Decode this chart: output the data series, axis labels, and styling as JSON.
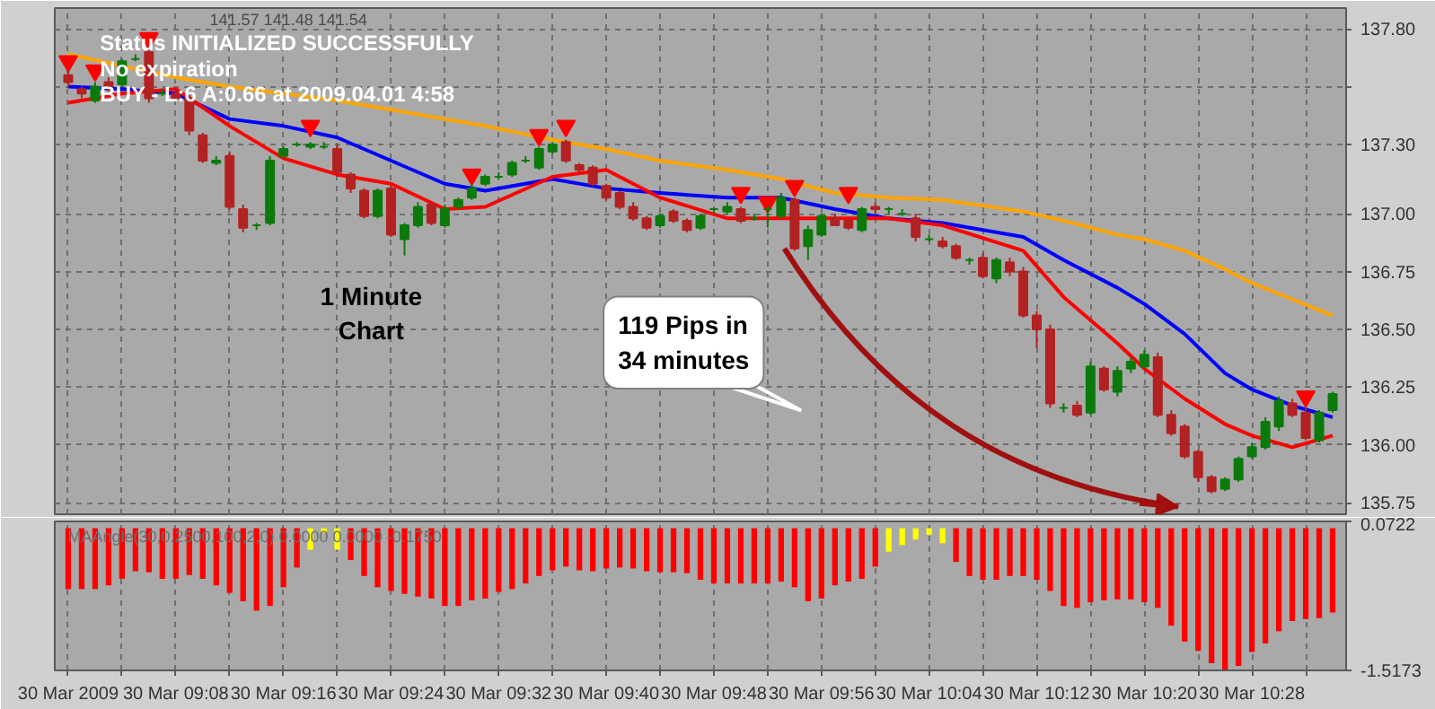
{
  "chart_data": [
    {
      "type": "candlestick",
      "annotations": [
        "141.57 141.48 141.54",
        "Status INITIALIZED SUCCESSFULLY",
        "No expiration",
        "BUY - L:6 A:0.66 at 2009.04.01 4:58",
        "1 Minute\nChart",
        "119 Pips in\n34 minutes"
      ],
      "x": [
        "2009-03-30T09:00",
        "2009-03-30T09:01",
        "2009-03-30T09:02",
        "2009-03-30T09:03",
        "2009-03-30T09:04",
        "2009-03-30T09:05",
        "2009-03-30T09:06",
        "2009-03-30T09:07",
        "2009-03-30T09:08",
        "2009-03-30T09:09",
        "2009-03-30T09:10",
        "2009-03-30T09:11",
        "2009-03-30T09:12",
        "2009-03-30T09:13",
        "2009-03-30T09:14",
        "2009-03-30T09:15",
        "2009-03-30T09:16",
        "2009-03-30T09:17",
        "2009-03-30T09:18",
        "2009-03-30T09:19",
        "2009-03-30T09:20",
        "2009-03-30T09:21",
        "2009-03-30T09:22",
        "2009-03-30T09:23",
        "2009-03-30T09:24",
        "2009-03-30T09:25",
        "2009-03-30T09:26",
        "2009-03-30T09:27",
        "2009-03-30T09:28",
        "2009-03-30T09:29",
        "2009-03-30T09:30",
        "2009-03-30T09:31",
        "2009-03-30T09:32",
        "2009-03-30T09:33",
        "2009-03-30T09:34",
        "2009-03-30T09:35",
        "2009-03-30T09:36",
        "2009-03-30T09:37",
        "2009-03-30T09:38",
        "2009-03-30T09:39",
        "2009-03-30T09:40",
        "2009-03-30T09:41",
        "2009-03-30T09:42",
        "2009-03-30T09:43",
        "2009-03-30T09:44",
        "2009-03-30T09:45",
        "2009-03-30T09:46",
        "2009-03-30T09:47",
        "2009-03-30T09:48",
        "2009-03-30T09:49",
        "2009-03-30T09:50",
        "2009-03-30T09:51",
        "2009-03-30T09:52",
        "2009-03-30T09:53",
        "2009-03-30T09:54",
        "2009-03-30T09:55",
        "2009-03-30T09:56",
        "2009-03-30T09:57",
        "2009-03-30T09:58",
        "2009-03-30T09:59",
        "2009-03-30T10:00",
        "2009-03-30T10:01",
        "2009-03-30T10:02",
        "2009-03-30T10:03",
        "2009-03-30T10:04",
        "2009-03-30T10:05",
        "2009-03-30T10:06",
        "2009-03-30T10:07",
        "2009-03-30T10:08",
        "2009-03-30T10:09",
        "2009-03-30T10:10",
        "2009-03-30T10:11",
        "2009-03-30T10:12",
        "2009-03-30T10:13",
        "2009-03-30T10:14",
        "2009-03-30T10:15",
        "2009-03-30T10:16",
        "2009-03-30T10:17",
        "2009-03-30T10:18",
        "2009-03-30T10:19",
        "2009-03-30T10:20",
        "2009-03-30T10:21",
        "2009-03-30T10:22",
        "2009-03-30T10:23",
        "2009-03-30T10:24",
        "2009-03-30T10:25",
        "2009-03-30T10:26",
        "2009-03-30T10:27",
        "2009-03-30T10:28",
        "2009-03-30T10:29",
        "2009-03-30T10:30",
        "2009-03-30T10:31",
        "2009-03-30T10:32",
        "2009-03-30T10:33",
        "2009-03-30T10:34"
      ],
      "ohlc": [
        [
          137.6,
          137.62,
          137.55,
          137.57
        ],
        [
          137.54,
          137.55,
          137.5,
          137.52
        ],
        [
          137.49,
          137.57,
          137.48,
          137.55
        ],
        [
          137.57,
          137.59,
          137.53,
          137.55
        ],
        [
          137.56,
          137.67,
          137.55,
          137.66
        ],
        [
          137.67,
          137.69,
          137.66,
          137.67
        ],
        [
          137.7,
          137.71,
          137.48,
          137.5
        ],
        [
          137.52,
          137.54,
          137.51,
          137.52
        ],
        [
          137.52,
          137.54,
          137.49,
          137.5
        ],
        [
          137.5,
          137.52,
          137.34,
          137.36
        ],
        [
          137.34,
          137.35,
          137.22,
          137.23
        ],
        [
          137.22,
          137.25,
          137.21,
          137.23
        ],
        [
          137.25,
          137.27,
          137.02,
          137.03
        ],
        [
          137.02,
          137.04,
          136.92,
          136.94
        ],
        [
          136.95,
          136.96,
          136.93,
          136.95
        ],
        [
          136.96,
          137.25,
          136.95,
          137.23
        ],
        [
          137.25,
          137.29,
          137.24,
          137.28
        ],
        [
          137.3,
          137.31,
          137.29,
          137.3
        ],
        [
          137.29,
          137.31,
          137.28,
          137.3
        ],
        [
          137.29,
          137.31,
          137.28,
          137.29
        ],
        [
          137.28,
          137.3,
          137.16,
          137.18
        ],
        [
          137.17,
          137.18,
          137.09,
          137.11
        ],
        [
          137.1,
          137.11,
          136.98,
          136.99
        ],
        [
          136.99,
          137.11,
          136.98,
          137.1
        ],
        [
          137.11,
          137.12,
          136.9,
          136.91
        ],
        [
          136.89,
          136.96,
          136.82,
          136.95
        ],
        [
          136.95,
          137.05,
          136.94,
          137.03
        ],
        [
          137.04,
          137.05,
          136.95,
          136.96
        ],
        [
          136.95,
          137.04,
          136.94,
          137.02
        ],
        [
          137.03,
          137.07,
          137.02,
          137.06
        ],
        [
          137.07,
          137.13,
          137.06,
          137.11
        ],
        [
          137.13,
          137.17,
          137.12,
          137.16
        ],
        [
          137.16,
          137.18,
          137.15,
          137.16
        ],
        [
          137.17,
          137.23,
          137.16,
          137.22
        ],
        [
          137.23,
          137.25,
          137.22,
          137.23
        ],
        [
          137.2,
          137.29,
          137.19,
          137.28
        ],
        [
          137.27,
          137.31,
          137.26,
          137.3
        ],
        [
          137.31,
          137.32,
          137.22,
          137.23
        ],
        [
          137.21,
          137.22,
          137.18,
          137.19
        ],
        [
          137.2,
          137.21,
          137.12,
          137.13
        ],
        [
          137.12,
          137.13,
          137.06,
          137.07
        ],
        [
          137.09,
          137.1,
          137.02,
          137.03
        ],
        [
          137.03,
          137.05,
          136.97,
          136.98
        ],
        [
          136.98,
          136.99,
          136.93,
          136.94
        ],
        [
          136.95,
          137.0,
          136.94,
          136.99
        ],
        [
          137.01,
          137.02,
          136.96,
          136.97
        ],
        [
          136.97,
          136.98,
          136.92,
          136.93
        ],
        [
          136.94,
          137.0,
          136.93,
          136.99
        ],
        [
          137.02,
          137.03,
          137.0,
          137.02
        ],
        [
          137.01,
          137.05,
          137.0,
          137.03
        ],
        [
          137.02,
          137.03,
          136.96,
          136.97
        ],
        [
          136.98,
          137.0,
          136.97,
          136.98
        ],
        [
          137.02,
          137.04,
          136.94,
          137.02
        ],
        [
          136.99,
          137.09,
          136.98,
          137.07
        ],
        [
          137.06,
          137.07,
          136.84,
          136.85
        ],
        [
          136.86,
          136.95,
          136.8,
          136.93
        ],
        [
          136.91,
          137.0,
          136.9,
          136.99
        ],
        [
          136.98,
          137.0,
          136.95,
          136.95
        ],
        [
          136.97,
          136.98,
          136.93,
          136.94
        ],
        [
          136.93,
          137.03,
          136.92,
          137.02
        ],
        [
          137.03,
          137.05,
          137.0,
          137.02
        ],
        [
          137.02,
          137.03,
          137.0,
          137.02
        ],
        [
          137.0,
          137.02,
          136.99,
          137.0
        ],
        [
          136.98,
          137.0,
          136.88,
          136.9
        ],
        [
          136.89,
          136.91,
          136.88,
          136.89
        ],
        [
          136.88,
          136.9,
          136.85,
          136.86
        ],
        [
          136.86,
          136.87,
          136.8,
          136.81
        ],
        [
          136.8,
          136.81,
          136.78,
          136.8
        ],
        [
          136.81,
          136.83,
          136.72,
          136.73
        ],
        [
          136.72,
          136.81,
          136.7,
          136.8
        ],
        [
          136.79,
          136.81,
          136.73,
          136.75
        ],
        [
          136.75,
          136.77,
          136.55,
          136.56
        ],
        [
          136.56,
          136.58,
          136.42,
          136.5
        ],
        [
          136.5,
          136.52,
          136.16,
          136.18
        ],
        [
          136.16,
          136.18,
          136.14,
          136.16
        ],
        [
          136.17,
          136.19,
          136.12,
          136.13
        ],
        [
          136.14,
          136.36,
          136.13,
          136.34
        ],
        [
          136.33,
          136.34,
          136.23,
          136.24
        ],
        [
          136.23,
          136.34,
          136.21,
          136.32
        ],
        [
          136.33,
          136.38,
          136.31,
          136.36
        ],
        [
          136.34,
          136.41,
          136.33,
          136.39
        ],
        [
          136.38,
          136.4,
          136.12,
          136.13
        ],
        [
          136.13,
          136.15,
          136.04,
          136.05
        ],
        [
          136.08,
          136.09,
          135.94,
          135.95
        ],
        [
          135.97,
          135.98,
          135.84,
          135.86
        ],
        [
          135.86,
          135.87,
          135.79,
          135.8
        ],
        [
          135.81,
          135.86,
          135.8,
          135.85
        ],
        [
          135.85,
          135.95,
          135.84,
          135.94
        ],
        [
          135.95,
          136.01,
          135.94,
          135.99
        ],
        [
          135.99,
          136.12,
          135.98,
          136.1
        ],
        [
          136.08,
          136.21,
          136.06,
          136.19
        ],
        [
          136.18,
          136.2,
          136.12,
          136.13
        ],
        [
          136.14,
          136.16,
          136.02,
          136.03
        ],
        [
          136.02,
          136.15,
          136.01,
          136.14
        ],
        [
          136.15,
          136.23,
          136.14,
          136.22
        ]
      ],
      "colors": [
        "#b22222",
        "#b22222",
        "#0b7a0b",
        "#b22222",
        "#0b7a0b",
        "#0b7a0b",
        "#b22222",
        "#0b7a0b",
        "#b22222",
        "#b22222",
        "#b22222",
        "#0b7a0b",
        "#b22222",
        "#b22222",
        "#0b7a0b",
        "#0b7a0b",
        "#0b7a0b",
        "#0b7a0b",
        "#0b7a0b",
        "#0b7a0b",
        "#b22222",
        "#b22222",
        "#b22222",
        "#0b7a0b",
        "#b22222",
        "#0b7a0b",
        "#0b7a0b",
        "#b22222",
        "#0b7a0b",
        "#0b7a0b",
        "#0b7a0b",
        "#0b7a0b",
        "#0b7a0b",
        "#0b7a0b",
        "#0b7a0b",
        "#0b7a0b",
        "#0b7a0b",
        "#b22222",
        "#b22222",
        "#b22222",
        "#b22222",
        "#b22222",
        "#b22222",
        "#b22222",
        "#0b7a0b",
        "#b22222",
        "#b22222",
        "#0b7a0b",
        "#0b7a0b",
        "#0b7a0b",
        "#b22222",
        "#0b7a0b",
        "#0b7a0b",
        "#0b7a0b",
        "#b22222",
        "#0b7a0b",
        "#0b7a0b",
        "#b22222",
        "#b22222",
        "#0b7a0b",
        "#b22222",
        "#0b7a0b",
        "#0b7a0b",
        "#b22222",
        "#0b7a0b",
        "#b22222",
        "#b22222",
        "#0b7a0b",
        "#b22222",
        "#0b7a0b",
        "#b22222",
        "#b22222",
        "#b22222",
        "#b22222",
        "#0b7a0b",
        "#b22222",
        "#0b7a0b",
        "#b22222",
        "#0b7a0b",
        "#0b7a0b",
        "#0b7a0b",
        "#b22222",
        "#b22222",
        "#b22222",
        "#b22222",
        "#b22222",
        "#0b7a0b",
        "#0b7a0b",
        "#0b7a0b",
        "#0b7a0b",
        "#0b7a0b",
        "#b22222",
        "#b22222",
        "#0b7a0b",
        "#0b7a0b"
      ],
      "series": [
        {
          "type": "line",
          "color": "#ffa500",
          "x": [
            "2009-03-30T09:00",
            "2009-03-30T09:04",
            "2009-03-30T09:08",
            "2009-03-30T09:12",
            "2009-03-30T09:16",
            "2009-03-30T09:20",
            "2009-03-30T09:24",
            "2009-03-30T09:28",
            "2009-03-30T09:31",
            "2009-03-30T09:36",
            "2009-03-30T09:40",
            "2009-03-30T09:44",
            "2009-03-30T09:49",
            "2009-03-30T09:53",
            "2009-03-30T09:57",
            "2009-03-30T10:01",
            "2009-03-30T10:05",
            "2009-03-30T10:11",
            "2009-03-30T10:14",
            "2009-03-30T10:18",
            "2009-03-30T10:20",
            "2009-03-30T10:23",
            "2009-03-30T10:26",
            "2009-03-30T10:28",
            "2009-03-30T10:31",
            "2009-03-30T10:34"
          ],
          "values": [
            137.69,
            137.64,
            137.59,
            137.55,
            137.52,
            137.49,
            137.45,
            137.41,
            137.38,
            137.32,
            137.28,
            137.23,
            137.19,
            137.15,
            137.09,
            137.07,
            137.06,
            137.01,
            136.97,
            136.91,
            136.89,
            136.84,
            136.76,
            136.7,
            136.63,
            136.56
          ]
        },
        {
          "type": "line",
          "color": "#0000ff",
          "x": [
            "2009-03-30T09:00",
            "2009-03-30T09:04",
            "2009-03-30T09:08",
            "2009-03-30T09:12",
            "2009-03-30T09:16",
            "2009-03-30T09:20",
            "2009-03-30T09:24",
            "2009-03-30T09:28",
            "2009-03-30T09:31",
            "2009-03-30T09:36",
            "2009-03-30T09:40",
            "2009-03-30T09:44",
            "2009-03-30T09:49",
            "2009-03-30T09:53",
            "2009-03-30T09:57",
            "2009-03-30T10:01",
            "2009-03-30T10:05",
            "2009-03-30T10:11",
            "2009-03-30T10:14",
            "2009-03-30T10:18",
            "2009-03-30T10:20",
            "2009-03-30T10:23",
            "2009-03-30T10:26",
            "2009-03-30T10:28",
            "2009-03-30T10:31",
            "2009-03-30T10:34"
          ],
          "values": [
            137.55,
            137.54,
            137.52,
            137.41,
            137.38,
            137.33,
            137.23,
            137.13,
            137.1,
            137.15,
            137.11,
            137.09,
            137.07,
            137.07,
            137.02,
            136.98,
            136.96,
            136.9,
            136.8,
            136.68,
            136.61,
            136.48,
            136.31,
            136.24,
            136.17,
            136.12
          ]
        },
        {
          "type": "line",
          "color": "#ff0000",
          "x": [
            "2009-03-30T09:00",
            "2009-03-30T09:04",
            "2009-03-30T09:08",
            "2009-03-30T09:12",
            "2009-03-30T09:16",
            "2009-03-30T09:20",
            "2009-03-30T09:24",
            "2009-03-30T09:28",
            "2009-03-30T09:31",
            "2009-03-30T09:36",
            "2009-03-30T09:40",
            "2009-03-30T09:44",
            "2009-03-30T09:49",
            "2009-03-30T09:53",
            "2009-03-30T09:57",
            "2009-03-30T10:01",
            "2009-03-30T10:05",
            "2009-03-30T10:11",
            "2009-03-30T10:14",
            "2009-03-30T10:18",
            "2009-03-30T10:20",
            "2009-03-30T10:23",
            "2009-03-30T10:26",
            "2009-03-30T10:28",
            "2009-03-30T10:31",
            "2009-03-30T10:34"
          ],
          "values": [
            137.48,
            137.52,
            137.54,
            137.38,
            137.24,
            137.17,
            137.13,
            137.02,
            137.03,
            137.16,
            137.19,
            137.07,
            136.98,
            136.98,
            136.98,
            136.98,
            136.95,
            136.84,
            136.64,
            136.44,
            136.33,
            136.2,
            136.09,
            136.04,
            135.99,
            136.04
          ]
        },
        {
          "type": "scatter",
          "marker": "triangle",
          "color": "#ff0000",
          "x": [
            "2009-03-30T09:00",
            "2009-03-30T09:02",
            "2009-03-30T09:06",
            "2009-03-30T09:18",
            "2009-03-30T09:30",
            "2009-03-30T09:35",
            "2009-03-30T09:37",
            "2009-03-30T09:50",
            "2009-03-30T09:52",
            "2009-03-30T09:54",
            "2009-03-30T09:58",
            "2009-03-30T10:32"
          ],
          "values": [
            137.66,
            137.62,
            137.76,
            137.38,
            137.17,
            137.34,
            137.38,
            137.09,
            137.05,
            137.12,
            137.09,
            136.21
          ]
        }
      ],
      "xlim": [
        "2009-03-30T08:59",
        "2009-03-30T10:35"
      ],
      "xticks": [
        {
          "value": "2009-03-30T09:00",
          "label": null
        },
        {
          "value": "2009-03-30T09:04",
          "label": null
        },
        {
          "value": "2009-03-30T09:08",
          "label": null
        },
        {
          "value": "2009-03-30T09:12",
          "label": null
        },
        {
          "value": "2009-03-30T09:16",
          "label": null
        },
        {
          "value": "2009-03-30T09:20",
          "label": null
        },
        {
          "value": "2009-03-30T09:24",
          "label": null
        },
        {
          "value": "2009-03-30T09:28",
          "label": null
        },
        {
          "value": "2009-03-30T09:32",
          "label": null
        },
        {
          "value": "2009-03-30T09:36",
          "label": null
        },
        {
          "value": "2009-03-30T09:40",
          "label": null
        },
        {
          "value": "2009-03-30T09:44",
          "label": null
        },
        {
          "value": "2009-03-30T09:48",
          "label": null
        },
        {
          "value": "2009-03-30T09:52",
          "label": null
        },
        {
          "value": "2009-03-30T09:56",
          "label": null
        },
        {
          "value": "2009-03-30T10:00",
          "label": null
        },
        {
          "value": "2009-03-30T10:04",
          "label": null
        },
        {
          "value": "2009-03-30T10:08",
          "label": null
        },
        {
          "value": "2009-03-30T10:12",
          "label": null
        },
        {
          "value": "2009-03-30T10:16",
          "label": null
        },
        {
          "value": "2009-03-30T10:20",
          "label": null
        },
        {
          "value": "2009-03-30T10:24",
          "label": null
        },
        {
          "value": "2009-03-30T10:28",
          "label": null
        },
        {
          "value": "2009-03-30T10:32",
          "label": null
        }
      ],
      "ylim": [
        135.7,
        137.89
      ],
      "yticks": [
        {
          "value": 137.8,
          "label": "137.80"
        },
        {
          "value": 137.55,
          "label": null
        },
        {
          "value": 137.3,
          "label": "137.30"
        },
        {
          "value": 137.0,
          "label": "137.00"
        },
        136.75,
        {
          "value": 136.5,
          "label": "136.50"
        },
        136.25,
        {
          "value": 136.0,
          "label": "136.00"
        },
        135.75
      ],
      "grid": true,
      "tick_labels": "y"
    },
    {
      "type": "bar",
      "annotations": [
        "MAAngle(30,0.2500,100,2,0) 0.0000 0.0000 -0.1750"
      ],
      "x": [
        "2009-03-30T09:00",
        "2009-03-30T09:01",
        "2009-03-30T09:02",
        "2009-03-30T09:03",
        "2009-03-30T09:04",
        "2009-03-30T09:05",
        "2009-03-30T09:06",
        "2009-03-30T09:07",
        "2009-03-30T09:08",
        "2009-03-30T09:09",
        "2009-03-30T09:10",
        "2009-03-30T09:11",
        "2009-03-30T09:12",
        "2009-03-30T09:13",
        "2009-03-30T09:14",
        "2009-03-30T09:15",
        "2009-03-30T09:16",
        "2009-03-30T09:17",
        "2009-03-30T09:18",
        "2009-03-30T09:19",
        "2009-03-30T09:20",
        "2009-03-30T09:21",
        "2009-03-30T09:22",
        "2009-03-30T09:23",
        "2009-03-30T09:24",
        "2009-03-30T09:25",
        "2009-03-30T09:26",
        "2009-03-30T09:27",
        "2009-03-30T09:28",
        "2009-03-30T09:29",
        "2009-03-30T09:30",
        "2009-03-30T09:31",
        "2009-03-30T09:32",
        "2009-03-30T09:33",
        "2009-03-30T09:34",
        "2009-03-30T09:35",
        "2009-03-30T09:36",
        "2009-03-30T09:37",
        "2009-03-30T09:38",
        "2009-03-30T09:39",
        "2009-03-30T09:40",
        "2009-03-30T09:41",
        "2009-03-30T09:42",
        "2009-03-30T09:43",
        "2009-03-30T09:44",
        "2009-03-30T09:45",
        "2009-03-30T09:46",
        "2009-03-30T09:47",
        "2009-03-30T09:48",
        "2009-03-30T09:49",
        "2009-03-30T09:50",
        "2009-03-30T09:51",
        "2009-03-30T09:52",
        "2009-03-30T09:53",
        "2009-03-30T09:54",
        "2009-03-30T09:55",
        "2009-03-30T09:56",
        "2009-03-30T09:57",
        "2009-03-30T09:58",
        "2009-03-30T09:59",
        "2009-03-30T10:00",
        "2009-03-30T10:01",
        "2009-03-30T10:02",
        "2009-03-30T10:03",
        "2009-03-30T10:04",
        "2009-03-30T10:05",
        "2009-03-30T10:06",
        "2009-03-30T10:07",
        "2009-03-30T10:08",
        "2009-03-30T10:09",
        "2009-03-30T10:10",
        "2009-03-30T10:11",
        "2009-03-30T10:12",
        "2009-03-30T10:13",
        "2009-03-30T10:14",
        "2009-03-30T10:15",
        "2009-03-30T10:16",
        "2009-03-30T10:17",
        "2009-03-30T10:18",
        "2009-03-30T10:19",
        "2009-03-30T10:20",
        "2009-03-30T10:21",
        "2009-03-30T10:22",
        "2009-03-30T10:23",
        "2009-03-30T10:24",
        "2009-03-30T10:25",
        "2009-03-30T10:26",
        "2009-03-30T10:27",
        "2009-03-30T10:28",
        "2009-03-30T10:29",
        "2009-03-30T10:30",
        "2009-03-30T10:31",
        "2009-03-30T10:32",
        "2009-03-30T10:33",
        "2009-03-30T10:34"
      ],
      "values": [
        -0.65,
        -0.65,
        -0.65,
        -0.61,
        -0.54,
        -0.46,
        -0.47,
        -0.54,
        -0.54,
        -0.5,
        -0.54,
        -0.61,
        -0.69,
        -0.78,
        -0.88,
        -0.83,
        -0.63,
        -0.42,
        -0.23,
        -0.05,
        -0.23,
        -0.34,
        -0.51,
        -0.63,
        -0.67,
        -0.7,
        -0.73,
        -0.75,
        -0.83,
        -0.83,
        -0.77,
        -0.75,
        -0.68,
        -0.65,
        -0.59,
        -0.51,
        -0.45,
        -0.41,
        -0.45,
        -0.46,
        -0.43,
        -0.42,
        -0.43,
        -0.46,
        -0.47,
        -0.47,
        -0.48,
        -0.55,
        -0.59,
        -0.59,
        -0.59,
        -0.59,
        -0.59,
        -0.57,
        -0.63,
        -0.78,
        -0.75,
        -0.61,
        -0.57,
        -0.54,
        -0.41,
        -0.25,
        -0.18,
        -0.12,
        -0.07,
        -0.16,
        -0.36,
        -0.51,
        -0.55,
        -0.55,
        -0.51,
        -0.51,
        -0.55,
        -0.67,
        -0.83,
        -0.85,
        -0.79,
        -0.77,
        -0.76,
        -0.76,
        -0.79,
        -0.85,
        -1.04,
        -1.21,
        -1.31,
        -1.44,
        -1.5173,
        -1.47,
        -1.32,
        -1.23,
        -1.1,
        -0.99,
        -0.97,
        -0.96,
        -0.9
      ],
      "colors": [
        "#ff0000",
        "#ff0000",
        "#ff0000",
        "#ff0000",
        "#ff0000",
        "#ff0000",
        "#ff0000",
        "#ff0000",
        "#ff0000",
        "#ff0000",
        "#ff0000",
        "#ff0000",
        "#ff0000",
        "#ff0000",
        "#ff0000",
        "#ff0000",
        "#ff0000",
        "#ff0000",
        "#ffff00",
        "#ffff00",
        "#ffff00",
        "#ff0000",
        "#ff0000",
        "#ff0000",
        "#ff0000",
        "#ff0000",
        "#ff0000",
        "#ff0000",
        "#ff0000",
        "#ff0000",
        "#ff0000",
        "#ff0000",
        "#ff0000",
        "#ff0000",
        "#ff0000",
        "#ff0000",
        "#ff0000",
        "#ff0000",
        "#ff0000",
        "#ff0000",
        "#ff0000",
        "#ff0000",
        "#ff0000",
        "#ff0000",
        "#ff0000",
        "#ff0000",
        "#ff0000",
        "#ff0000",
        "#ff0000",
        "#ff0000",
        "#ff0000",
        "#ff0000",
        "#ff0000",
        "#ff0000",
        "#ff0000",
        "#ff0000",
        "#ff0000",
        "#ff0000",
        "#ff0000",
        "#ff0000",
        "#ff0000",
        "#ffff00",
        "#ffff00",
        "#ffff00",
        "#ffff00",
        "#ffff00",
        "#ff0000",
        "#ff0000",
        "#ff0000",
        "#ff0000",
        "#ff0000",
        "#ff0000",
        "#ff0000",
        "#ff0000",
        "#ff0000",
        "#ff0000",
        "#ff0000",
        "#ff0000",
        "#ff0000",
        "#ff0000",
        "#ff0000",
        "#ff0000",
        "#ff0000",
        "#ff0000",
        "#ff0000",
        "#ff0000",
        "#ff0000",
        "#ff0000",
        "#ff0000",
        "#ff0000",
        "#ff0000",
        "#ff0000",
        "#ff0000",
        "#ff0000",
        "#ff0000"
      ],
      "xlim": [
        "2009-03-30T08:59",
        "2009-03-30T10:35"
      ],
      "xticks": [
        {
          "value": "2009-03-30T09:00",
          "label": "30 Mar 2009"
        },
        {
          "value": "2009-03-30T09:04",
          "label": null
        },
        {
          "value": "2009-03-30T09:08",
          "label": "30 Mar 09:08"
        },
        {
          "value": "2009-03-30T09:12",
          "label": null
        },
        {
          "value": "2009-03-30T09:16",
          "label": "30 Mar 09:16"
        },
        {
          "value": "2009-03-30T09:20",
          "label": null
        },
        {
          "value": "2009-03-30T09:24",
          "label": "30 Mar 09:24"
        },
        {
          "value": "2009-03-30T09:28",
          "label": null
        },
        {
          "value": "2009-03-30T09:32",
          "label": "30 Mar 09:32"
        },
        {
          "value": "2009-03-30T09:36",
          "label": null
        },
        {
          "value": "2009-03-30T09:40",
          "label": "30 Mar 09:40"
        },
        {
          "value": "2009-03-30T09:44",
          "label": null
        },
        {
          "value": "2009-03-30T09:48",
          "label": "30 Mar 09:48"
        },
        {
          "value": "2009-03-30T09:52",
          "label": null
        },
        {
          "value": "2009-03-30T09:56",
          "label": "30 Mar 09:56"
        },
        {
          "value": "2009-03-30T10:00",
          "label": null
        },
        {
          "value": "2009-03-30T10:04",
          "label": "30 Mar 10:04"
        },
        {
          "value": "2009-03-30T10:08",
          "label": null
        },
        {
          "value": "2009-03-30T10:12",
          "label": "30 Mar 10:12"
        },
        {
          "value": "2009-03-30T10:16",
          "label": null
        },
        {
          "value": "2009-03-30T10:20",
          "label": "30 Mar 10:20"
        },
        {
          "value": "2009-03-30T10:24",
          "label": null
        },
        {
          "value": "2009-03-30T10:28",
          "label": "30 Mar 10:28"
        },
        {
          "value": "2009-03-30T10:32",
          "label": null
        }
      ],
      "ylim": [
        -1.5173,
        0.0722
      ],
      "yticks": [
        0.0722,
        -1.5173
      ],
      "grid": "x"
    }
  ]
}
